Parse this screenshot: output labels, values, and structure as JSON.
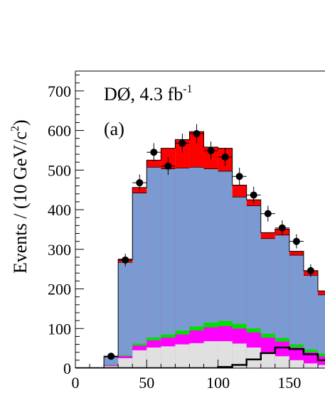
{
  "chart_data": {
    "type": "histogram",
    "ylabel": "Events / (10 GeV/c²)",
    "ylabel_parts": {
      "main": "Events / (10 GeV/c",
      "sup": "2",
      "close": ")"
    },
    "annotation": {
      "main": "DØ, 4.3 fb",
      "sup": "-1"
    },
    "panel_label": "(a)",
    "xlim": [
      0,
      175
    ],
    "ylim": [
      0,
      750
    ],
    "x_ticks": [
      "0",
      "50",
      "100",
      "150"
    ],
    "y_ticks": [
      "0",
      "100",
      "200",
      "300",
      "400",
      "500",
      "600",
      "700"
    ],
    "bin_edges": [
      0,
      10,
      20,
      30,
      40,
      50,
      60,
      70,
      80,
      90,
      100,
      110,
      120,
      130,
      140,
      150,
      160,
      170,
      175
    ],
    "stacks": [
      {
        "key": "lightgray",
        "color": "#e0e0e0",
        "values": [
          0,
          0,
          5,
          25,
          45,
          52,
          55,
          60,
          63,
          68,
          68,
          62,
          52,
          40,
          30,
          20,
          12,
          8
        ]
      },
      {
        "key": "magenta",
        "color": "#ff00ff",
        "values": [
          0,
          0,
          2,
          5,
          12,
          18,
          22,
          25,
          32,
          35,
          38,
          38,
          38,
          37,
          37,
          32,
          28,
          22
        ]
      },
      {
        "key": "green",
        "color": "#00e000",
        "values": [
          0,
          0,
          1,
          2,
          5,
          7,
          8,
          10,
          10,
          12,
          13,
          12,
          10,
          10,
          9,
          8,
          7,
          7
        ]
      },
      {
        "key": "blue",
        "color": "#7b9ad2",
        "values": [
          0,
          0,
          20,
          235,
          380,
          430,
          418,
          410,
          402,
          388,
          378,
          320,
          310,
          240,
          260,
          225,
          187,
          148
        ]
      },
      {
        "key": "red",
        "color": "#ff0000",
        "values": [
          0,
          0,
          2,
          8,
          14,
          18,
          52,
          72,
          90,
          55,
          58,
          30,
          15,
          15,
          15,
          10,
          12,
          10
        ]
      }
    ],
    "outline_color": "#000000",
    "overlay": {
      "key": "black-line",
      "color": "#000000",
      "values": [
        0,
        0,
        0,
        0,
        0,
        0,
        0,
        0,
        0,
        0,
        3,
        8,
        22,
        38,
        52,
        48,
        35,
        20
      ]
    },
    "data_points": {
      "x": [
        25,
        35,
        45,
        55,
        65,
        75,
        85,
        95,
        105,
        115,
        125,
        135,
        145,
        155,
        165
      ],
      "y": [
        30,
        273,
        468,
        545,
        510,
        568,
        592,
        549,
        533,
        484,
        437,
        390,
        354,
        320,
        246
      ],
      "yerr": [
        6,
        16,
        21,
        23,
        22,
        24,
        24,
        23,
        23,
        22,
        21,
        20,
        19,
        18,
        16
      ],
      "xerr": 5
    }
  }
}
